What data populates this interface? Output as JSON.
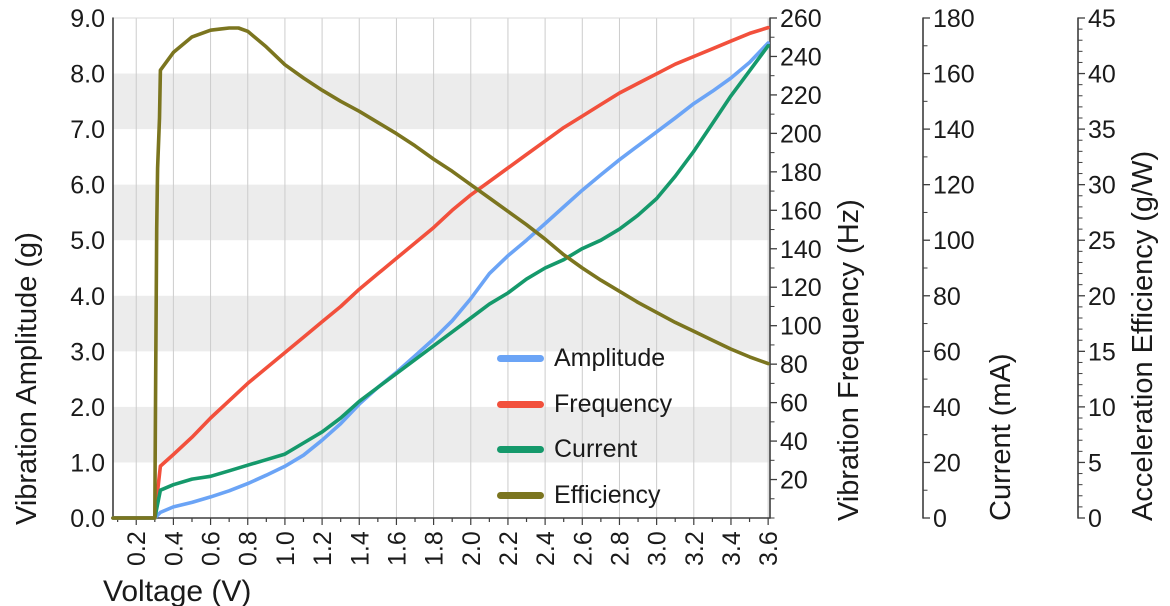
{
  "chart_data": {
    "type": "line",
    "title": "",
    "xlabel": "Voltage (V)",
    "grid": "vertical-only",
    "shaded_bands_left_units": [
      [
        1,
        2
      ],
      [
        3,
        4
      ],
      [
        5,
        6
      ],
      [
        7,
        8
      ]
    ],
    "band_color": "#ececec",
    "gridline_color": "#cccccc",
    "spine_color": "#3d3d3d",
    "text_color": "#1a1a1a",
    "x_axis": {
      "label": "Voltage (V)",
      "tick_labels": [
        "0.2",
        "0.4",
        "0.6",
        "0.8",
        "1.0",
        "1.2",
        "1.4",
        "1.6",
        "1.8",
        "2.0",
        "2.2",
        "2.4",
        "2.6",
        "2.8",
        "3.0",
        "3.2",
        "3.4",
        "3.6"
      ],
      "range": [
        0.075,
        3.61
      ],
      "minor_tick_step": 0.1
    },
    "axes": {
      "amplitude": {
        "label": "Vibration Amplitude (g)",
        "side": "left",
        "range": [
          0,
          9
        ],
        "tick_labels": [
          "0.0",
          "1.0",
          "2.0",
          "3.0",
          "4.0",
          "5.0",
          "6.0",
          "7.0",
          "8.0",
          "9.0"
        ]
      },
      "frequency": {
        "label": "Vibration Frequency (Hz)",
        "side": "right",
        "range": [
          0,
          260
        ],
        "tick_labels": [
          "20",
          "40",
          "60",
          "80",
          "100",
          "120",
          "140",
          "160",
          "180",
          "200",
          "220",
          "240",
          "260"
        ],
        "minor_tick_step": 10
      },
      "current": {
        "label": "Current (mA)",
        "side": "right-detached",
        "range": [
          0,
          180
        ],
        "tick_labels": [
          "0",
          "20",
          "40",
          "60",
          "80",
          "100",
          "120",
          "140",
          "160",
          "180"
        ],
        "minor_tick_step": 10
      },
      "efficiency": {
        "label": "Acceleration Efficiency (g/W)",
        "side": "right-detached",
        "range": [
          0,
          45
        ],
        "tick_labels": [
          "0",
          "5",
          "10",
          "15",
          "20",
          "25",
          "30",
          "35",
          "40",
          "45"
        ],
        "minor_tick_step": 1
      }
    },
    "legend": {
      "position": "inside-lower-middle"
    },
    "series": [
      {
        "name": "Amplitude",
        "axis": "amplitude",
        "color": "#6ba4f6",
        "points": [
          [
            0.075,
            0
          ],
          [
            0.2,
            0
          ],
          [
            0.3,
            0
          ],
          [
            0.33,
            0.1
          ],
          [
            0.4,
            0.2
          ],
          [
            0.5,
            0.28
          ],
          [
            0.6,
            0.38
          ],
          [
            0.7,
            0.49
          ],
          [
            0.8,
            0.62
          ],
          [
            0.9,
            0.77
          ],
          [
            1.0,
            0.93
          ],
          [
            1.1,
            1.13
          ],
          [
            1.2,
            1.4
          ],
          [
            1.3,
            1.7
          ],
          [
            1.4,
            2.05
          ],
          [
            1.5,
            2.35
          ],
          [
            1.6,
            2.62
          ],
          [
            1.7,
            2.92
          ],
          [
            1.8,
            3.22
          ],
          [
            1.9,
            3.55
          ],
          [
            2.0,
            3.95
          ],
          [
            2.1,
            4.4
          ],
          [
            2.2,
            4.72
          ],
          [
            2.3,
            5.0
          ],
          [
            2.4,
            5.3
          ],
          [
            2.5,
            5.6
          ],
          [
            2.6,
            5.9
          ],
          [
            2.7,
            6.18
          ],
          [
            2.8,
            6.45
          ],
          [
            2.9,
            6.7
          ],
          [
            3.0,
            6.95
          ],
          [
            3.1,
            7.2
          ],
          [
            3.2,
            7.46
          ],
          [
            3.3,
            7.68
          ],
          [
            3.4,
            7.92
          ],
          [
            3.5,
            8.2
          ],
          [
            3.6,
            8.55
          ]
        ]
      },
      {
        "name": "Frequency",
        "axis": "frequency",
        "color": "#f2503c",
        "points": [
          [
            0.075,
            0
          ],
          [
            0.2,
            0
          ],
          [
            0.3,
            0
          ],
          [
            0.315,
            14
          ],
          [
            0.33,
            27
          ],
          [
            0.4,
            33
          ],
          [
            0.5,
            42
          ],
          [
            0.6,
            52
          ],
          [
            0.7,
            61
          ],
          [
            0.8,
            70
          ],
          [
            0.9,
            78
          ],
          [
            1.0,
            86
          ],
          [
            1.1,
            94
          ],
          [
            1.2,
            102
          ],
          [
            1.3,
            110
          ],
          [
            1.4,
            119
          ],
          [
            1.5,
            127
          ],
          [
            1.6,
            135
          ],
          [
            1.7,
            143
          ],
          [
            1.8,
            151
          ],
          [
            1.9,
            160
          ],
          [
            2.0,
            168
          ],
          [
            2.1,
            175
          ],
          [
            2.2,
            182
          ],
          [
            2.3,
            189
          ],
          [
            2.4,
            196
          ],
          [
            2.5,
            203
          ],
          [
            2.6,
            209
          ],
          [
            2.7,
            215
          ],
          [
            2.8,
            221
          ],
          [
            2.9,
            226
          ],
          [
            3.0,
            231
          ],
          [
            3.1,
            236
          ],
          [
            3.2,
            240
          ],
          [
            3.3,
            244
          ],
          [
            3.4,
            248
          ],
          [
            3.5,
            252
          ],
          [
            3.6,
            255
          ]
        ]
      },
      {
        "name": "Current",
        "axis": "current",
        "color": "#15996b",
        "points": [
          [
            0.075,
            0
          ],
          [
            0.2,
            0
          ],
          [
            0.3,
            0
          ],
          [
            0.33,
            10
          ],
          [
            0.4,
            12
          ],
          [
            0.5,
            14
          ],
          [
            0.6,
            15
          ],
          [
            0.7,
            17
          ],
          [
            0.8,
            19
          ],
          [
            0.9,
            21
          ],
          [
            1.0,
            23
          ],
          [
            1.1,
            27
          ],
          [
            1.2,
            31
          ],
          [
            1.3,
            36
          ],
          [
            1.4,
            42
          ],
          [
            1.5,
            47
          ],
          [
            1.6,
            52
          ],
          [
            1.7,
            57
          ],
          [
            1.8,
            62
          ],
          [
            1.9,
            67
          ],
          [
            2.0,
            72
          ],
          [
            2.1,
            77
          ],
          [
            2.2,
            81
          ],
          [
            2.3,
            86
          ],
          [
            2.4,
            90
          ],
          [
            2.5,
            93
          ],
          [
            2.6,
            97
          ],
          [
            2.7,
            100
          ],
          [
            2.8,
            104
          ],
          [
            2.9,
            109
          ],
          [
            3.0,
            115
          ],
          [
            3.1,
            123
          ],
          [
            3.2,
            132
          ],
          [
            3.3,
            142
          ],
          [
            3.4,
            152
          ],
          [
            3.5,
            161
          ],
          [
            3.6,
            170
          ]
        ]
      },
      {
        "name": "Efficiency",
        "axis": "efficiency",
        "color": "#7b751f",
        "points": [
          [
            0.075,
            0
          ],
          [
            0.2,
            0
          ],
          [
            0.3,
            0
          ],
          [
            0.305,
            13
          ],
          [
            0.31,
            26
          ],
          [
            0.315,
            31.5
          ],
          [
            0.325,
            36
          ],
          [
            0.33,
            40.3
          ],
          [
            0.4,
            41.9
          ],
          [
            0.5,
            43.3
          ],
          [
            0.6,
            43.9
          ],
          [
            0.65,
            44.0
          ],
          [
            0.7,
            44.1
          ],
          [
            0.75,
            44.1
          ],
          [
            0.8,
            43.8
          ],
          [
            0.9,
            42.4
          ],
          [
            1.0,
            40.8
          ],
          [
            1.1,
            39.6
          ],
          [
            1.2,
            38.5
          ],
          [
            1.3,
            37.5
          ],
          [
            1.4,
            36.6
          ],
          [
            1.5,
            35.6
          ],
          [
            1.6,
            34.6
          ],
          [
            1.7,
            33.5
          ],
          [
            1.8,
            32.3
          ],
          [
            1.9,
            31.2
          ],
          [
            2.0,
            30.0
          ],
          [
            2.1,
            28.8
          ],
          [
            2.2,
            27.6
          ],
          [
            2.3,
            26.4
          ],
          [
            2.4,
            25.1
          ],
          [
            2.5,
            23.7
          ],
          [
            2.6,
            22.5
          ],
          [
            2.7,
            21.4
          ],
          [
            2.8,
            20.4
          ],
          [
            2.9,
            19.4
          ],
          [
            3.0,
            18.5
          ],
          [
            3.1,
            17.6
          ],
          [
            3.2,
            16.8
          ],
          [
            3.3,
            16.0
          ],
          [
            3.4,
            15.2
          ],
          [
            3.5,
            14.5
          ],
          [
            3.6,
            13.9
          ]
        ]
      }
    ]
  }
}
